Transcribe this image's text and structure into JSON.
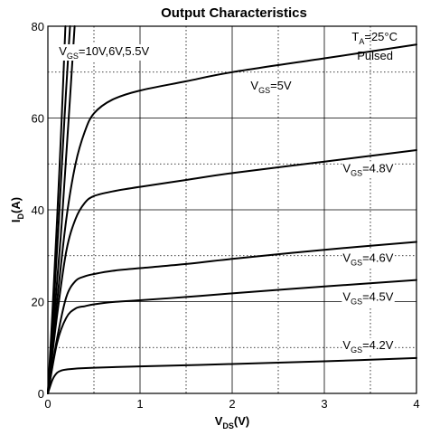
{
  "chart_data": {
    "type": "line",
    "title": "Output Characteristics",
    "xlabel": {
      "main": "V",
      "sub": "DS",
      "tail": "(V)"
    },
    "ylabel": {
      "main": "I",
      "sub": "D",
      "tail": "(A)"
    },
    "xlim": [
      0,
      4
    ],
    "ylim": [
      0,
      80
    ],
    "x_ticks": [
      "0",
      "1",
      "2",
      "3",
      "4"
    ],
    "y_ticks": [
      "0",
      "20",
      "40",
      "60",
      "80"
    ],
    "grid": true,
    "conditions": {
      "line1": {
        "main": "T",
        "sub": "A",
        "tail": "=25°C"
      },
      "line2": "Pulsed"
    },
    "series": [
      {
        "name": {
          "main": "V",
          "sub": "GS",
          "tail": "=10V,6V,5.5V"
        },
        "x": [
          0,
          0.05,
          0.1,
          0.15,
          0.19
        ],
        "y": [
          0,
          18,
          38,
          60,
          80
        ]
      },
      {
        "name": {
          "main": "V",
          "sub": "GS",
          "tail": "=10V,6V,5.5V"
        },
        "x": [
          0,
          0.06,
          0.12,
          0.18,
          0.24
        ],
        "y": [
          0,
          18,
          38,
          60,
          80
        ]
      },
      {
        "name": {
          "main": "V",
          "sub": "GS",
          "tail": "=10V,6V,5.5V"
        },
        "x": [
          0,
          0.07,
          0.15,
          0.22,
          0.29
        ],
        "y": [
          0,
          17,
          37,
          58,
          80
        ]
      },
      {
        "name": {
          "main": "V",
          "sub": "GS",
          "tail": "=5V"
        },
        "x": [
          0,
          0.1,
          0.2,
          0.3,
          0.4,
          0.5,
          0.7,
          1.0,
          1.5,
          2.0,
          3.0,
          4.0
        ],
        "y": [
          0,
          20,
          38,
          50,
          57,
          61,
          64,
          66,
          68,
          70,
          73,
          76
        ]
      },
      {
        "name": {
          "main": "V",
          "sub": "GS",
          "tail": "=4.8V"
        },
        "x": [
          0,
          0.1,
          0.2,
          0.3,
          0.4,
          0.5,
          0.7,
          1.0,
          1.5,
          2.0,
          3.0,
          4.0
        ],
        "y": [
          0,
          17,
          31,
          38,
          41.5,
          43,
          44,
          45,
          46.5,
          48,
          50.5,
          53
        ]
      },
      {
        "name": {
          "main": "V",
          "sub": "GS",
          "tail": "=4.6V"
        },
        "x": [
          0,
          0.1,
          0.2,
          0.3,
          0.4,
          0.5,
          0.7,
          1.0,
          1.5,
          2.0,
          3.0,
          4.0
        ],
        "y": [
          0,
          12,
          21,
          24.5,
          25.5,
          26,
          26.7,
          27.3,
          28.2,
          29.3,
          31.3,
          33
        ]
      },
      {
        "name": {
          "main": "V",
          "sub": "GS",
          "tail": "=4.5V"
        },
        "x": [
          0,
          0.1,
          0.2,
          0.3,
          0.4,
          0.5,
          0.7,
          1.0,
          1.5,
          2.0,
          3.0,
          4.0
        ],
        "y": [
          0,
          11,
          16.5,
          18.5,
          19,
          19.4,
          19.9,
          20.3,
          21,
          21.8,
          23.3,
          24.7
        ]
      },
      {
        "name": {
          "main": "V",
          "sub": "GS",
          "tail": "=4.2V"
        },
        "x": [
          0,
          0.05,
          0.1,
          0.15,
          0.2,
          0.3,
          0.5,
          1.0,
          2.0,
          3.0,
          4.0
        ],
        "y": [
          0,
          3,
          4.5,
          5,
          5.2,
          5.4,
          5.6,
          5.9,
          6.4,
          7.0,
          7.7
        ]
      }
    ],
    "labels": [
      {
        "series": 0,
        "x": 0.12,
        "y": 73.7
      },
      {
        "series": 3,
        "x": 2.2,
        "y": 66.2
      },
      {
        "series": 4,
        "x": 3.2,
        "y": 48.2
      },
      {
        "series": 5,
        "x": 3.2,
        "y": 28.7
      },
      {
        "series": 6,
        "x": 3.2,
        "y": 20.2
      },
      {
        "series": 7,
        "x": 3.2,
        "y": 9.7
      }
    ]
  }
}
